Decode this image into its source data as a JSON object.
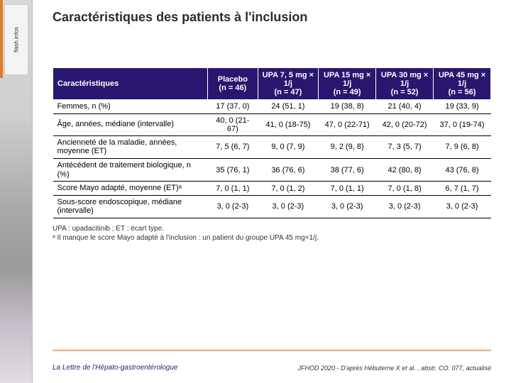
{
  "sidebar": {
    "tab_label": "flash.infos",
    "accent_color": "#e07b2c"
  },
  "title": "Caractéristiques des patients à l'inclusion",
  "table": {
    "header_bg": "#28166f",
    "header_fg": "#ffffff",
    "columns": [
      {
        "label": "Caractéristiques",
        "sub": ""
      },
      {
        "label": "Placebo",
        "sub": "(n = 46)"
      },
      {
        "label": "UPA 7, 5 mg\n× 1/j",
        "sub": "(n = 47)"
      },
      {
        "label": "UPA 15 mg\n× 1/j",
        "sub": "(n = 49)"
      },
      {
        "label": "UPA 30 mg\n× 1/j",
        "sub": "(n = 52)"
      },
      {
        "label": "UPA 45 mg\n× 1/j",
        "sub": "(n = 56)"
      }
    ],
    "rows": [
      {
        "label": "Femmes, n (%)",
        "cells": [
          "17 (37, 0)",
          "24 (51, 1)",
          "19 (38, 8)",
          "21 (40, 4)",
          "19 (33, 9)"
        ]
      },
      {
        "label": "Âge, années, médiane (intervalle)",
        "cells": [
          "40, 0 (21-67)",
          "41, 0 (18-75)",
          "47, 0 (22-71)",
          "42, 0 (20-72)",
          "37, 0 (19-74)"
        ]
      },
      {
        "label": "Ancienneté de la maladie, années, moyenne (ET)",
        "cells": [
          "7, 5 (6, 7)",
          "9, 0 (7, 9)",
          "9, 2 (9, 8)",
          "7, 3 (5, 7)",
          "7, 9 (6, 8)"
        ]
      },
      {
        "label": "Antécédent de traitement biologique, n (%)",
        "cells": [
          "35 (76, 1)",
          "36 (76, 6)",
          "38 (77, 6)",
          "42 (80, 8)",
          "43 (76, 8)"
        ]
      },
      {
        "label": "Score Mayo adapté, moyenne (ET)ᵃ",
        "cells": [
          "7, 0 (1, 1)",
          "7, 0 (1, 2)",
          "7, 0 (1, 1)",
          "7, 0 (1, 8)",
          "6, 7 (1, 7)"
        ]
      },
      {
        "label": "Sous-score endoscopique, médiane (intervalle)",
        "cells": [
          "3, 0 (2-3)",
          "3, 0 (2-3)",
          "3, 0 (2-3)",
          "3, 0 (2-3)",
          "3, 0 (2-3)"
        ]
      }
    ]
  },
  "footnotes": {
    "line1": "UPA : upadacitinib ; ET : écart type.",
    "line2": "ᵃ Il manque le score Mayo adapté à l'inclusion : un patient du groupe UPA 45 mg×1/j."
  },
  "footer": {
    "journal": "La Lettre de l'Hépato-gastroentérologue",
    "source": "JFHOD 2020 - D'après Hébuterne X et al. , abstr. CO. 077, actualisé",
    "rule_color": "#e07b2c"
  }
}
